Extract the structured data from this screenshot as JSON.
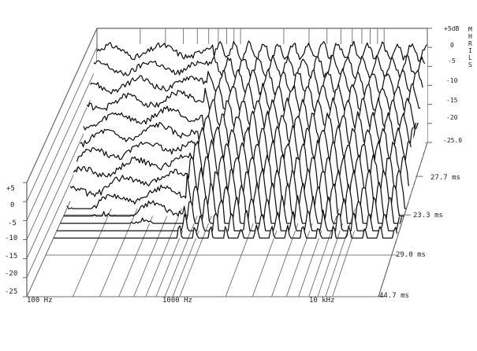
{
  "chart_data": {
    "type": "waterfall",
    "x_axis": {
      "scale": "log",
      "range_hz": [
        100,
        20000
      ],
      "tick_labels": [
        {
          "hz": 100,
          "text": "100 Hz"
        },
        {
          "hz": 1000,
          "text": "1000 Hz"
        },
        {
          "hz": 10000,
          "text": "10 kHz"
        }
      ]
    },
    "y_axis": {
      "unit": "dB",
      "range": [
        -25,
        5
      ],
      "front_tick_labels": [
        "+5",
        "0",
        "-5",
        "-10",
        "-15",
        "-20",
        "-25"
      ],
      "back_tick_labels": [
        "+5dB",
        "0",
        "-5",
        "-10",
        "-15",
        "-20",
        "-25.0"
      ],
      "back_vertical_label": "MHRILS"
    },
    "z_axis": {
      "unit": "ms",
      "tick_labels": [
        "27.7 ms",
        "23.3 ms",
        "29.0 ms",
        "44.7 ms"
      ]
    },
    "slice_count": 14,
    "grid": true
  }
}
